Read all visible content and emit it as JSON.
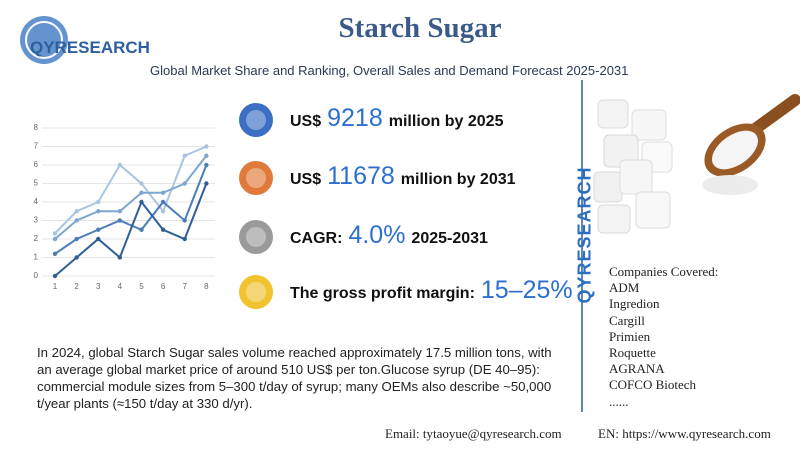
{
  "header": {
    "logo": "QYRESEARCH",
    "title": "Starch Sugar",
    "subtitle": "Global Market Share and Ranking, Overall Sales and Demand Forecast 2025-2031"
  },
  "chart_data": {
    "type": "line",
    "x": [
      1,
      2,
      3,
      4,
      5,
      6,
      7,
      8
    ],
    "xlim": [
      0.4,
      8.4
    ],
    "xticks": [
      1,
      2,
      3,
      4,
      5,
      6,
      7,
      8
    ],
    "ylim": [
      0,
      8
    ],
    "yticks": [
      0,
      1,
      2,
      3,
      4,
      5,
      6,
      7,
      8
    ],
    "grid": true,
    "series": [
      {
        "color": "#a9c4e0",
        "values": [
          2.3,
          3.5,
          4,
          6,
          5,
          3.5,
          6.5,
          7
        ]
      },
      {
        "color": "#7fa6cf",
        "values": [
          2,
          3,
          3.5,
          3.5,
          4.5,
          4.5,
          5,
          6.5
        ]
      },
      {
        "color": "#4a7db8",
        "values": [
          1.2,
          2,
          2.5,
          3,
          2.5,
          4,
          3,
          6
        ]
      },
      {
        "color": "#2f5f95",
        "values": [
          0,
          1,
          2,
          1,
          4,
          2.5,
          2,
          5
        ]
      }
    ]
  },
  "stats": [
    {
      "label": "US$",
      "value": "9218",
      "suffix": "million by 2025",
      "color": "#3a6fc4"
    },
    {
      "label": "US$",
      "value": "11678",
      "suffix": "million by 2031",
      "color": "#e07a3a"
    },
    {
      "label": "CAGR:",
      "value": "4.0%",
      "suffix": "2025-2031",
      "color": "#9a9a9a"
    },
    {
      "label": "The gross profit margin:",
      "value": "15–25%",
      "suffix": null,
      "color": "#f2c230"
    }
  ],
  "side_brand": "QYRESEARCH",
  "companies": {
    "heading": "Companies Covered:",
    "list": [
      "ADM",
      "Ingredion",
      "Cargill",
      "Primien",
      "Roquette",
      "AGRANA",
      "COFCO Biotech",
      "......"
    ]
  },
  "description": "In 2024, global Starch Sugar sales volume reached approximately 17.5 million tons, with an average global market price of around  510 US$ per ton.Glucose syrup (DE 40–95): commercial module sizes from 5–300 t/day of syrup; many OEMs also describe ~50,000 t/year plants (≈150 t/day at 330 d/yr).",
  "footer": {
    "email": "Email:  tytaoyue@qyresearch.com",
    "website": "EN: https://www.qyresearch.com"
  }
}
